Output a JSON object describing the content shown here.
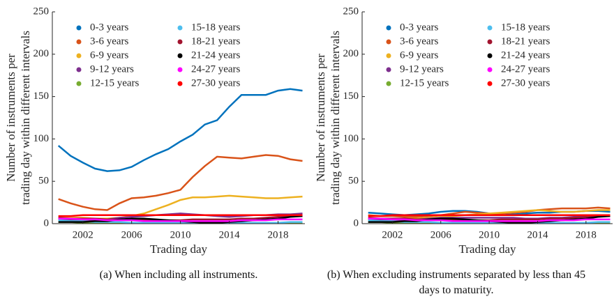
{
  "chart_data": [
    {
      "type": "line",
      "caption": "(a) When including all instruments.",
      "ylabel": [
        "Number of instruments per",
        "trading day within different intervals"
      ],
      "xlabel": "Trading day",
      "xlim": [
        1999.5,
        2020.2
      ],
      "xticks": [
        2002,
        2006,
        2010,
        2014,
        2018
      ],
      "ylim": [
        0,
        250
      ],
      "yticks": [
        0,
        50,
        100,
        150,
        200,
        250
      ],
      "legend": "upper left",
      "x": [
        2000,
        2001,
        2002,
        2003,
        2004,
        2005,
        2006,
        2007,
        2008,
        2009,
        2010,
        2011,
        2012,
        2013,
        2014,
        2015,
        2016,
        2017,
        2018,
        2019,
        2020
      ],
      "series": [
        {
          "name": "0-3 years",
          "color": "#0072bd",
          "values": [
            92,
            80,
            72,
            65,
            62,
            63,
            67,
            75,
            82,
            88,
            97,
            105,
            117,
            122,
            138,
            152,
            152,
            152,
            157,
            159,
            157
          ]
        },
        {
          "name": "3-6 years",
          "color": "#d95319",
          "values": [
            29,
            24,
            20,
            17,
            16,
            24,
            30,
            31,
            33,
            36,
            40,
            55,
            68,
            79,
            78,
            77,
            79,
            81,
            80,
            76,
            74
          ]
        },
        {
          "name": "6-9 years",
          "color": "#edb120",
          "values": [
            8,
            7,
            7,
            6,
            6,
            7,
            9,
            12,
            17,
            22,
            28,
            31,
            31,
            32,
            33,
            32,
            31,
            30,
            30,
            31,
            32
          ]
        },
        {
          "name": "9-12 years",
          "color": "#7e2f8e",
          "values": [
            5,
            4,
            4,
            4,
            5,
            7,
            8,
            9,
            10,
            11,
            12,
            11,
            10,
            9,
            8,
            9,
            10,
            10,
            11,
            11,
            12
          ]
        },
        {
          "name": "12-15 years",
          "color": "#77ac30",
          "values": [
            2,
            2,
            1,
            1,
            1,
            1,
            1,
            1,
            1,
            1,
            1,
            1,
            1,
            1,
            1,
            1,
            1,
            1,
            1,
            1,
            1
          ]
        },
        {
          "name": "15-18 years",
          "color": "#4dbeee",
          "values": [
            4,
            3,
            3,
            2,
            2,
            2,
            1,
            1,
            1,
            1,
            1,
            1,
            1,
            1,
            1,
            1,
            1,
            1,
            1,
            2,
            2
          ]
        },
        {
          "name": "18-21 years",
          "color": "#a2142f",
          "values": [
            7,
            6,
            6,
            6,
            5,
            5,
            5,
            4,
            4,
            4,
            4,
            5,
            5,
            5,
            5,
            6,
            6,
            7,
            8,
            9,
            10
          ]
        },
        {
          "name": "21-24 years",
          "color": "#000000",
          "values": [
            2,
            2,
            2,
            3,
            3,
            5,
            6,
            6,
            5,
            4,
            3,
            2,
            1,
            1,
            2,
            3,
            4,
            5,
            6,
            8,
            9
          ]
        },
        {
          "name": "24-27 years",
          "color": "#ff00ff",
          "values": [
            6,
            6,
            5,
            5,
            4,
            4,
            4,
            3,
            3,
            3,
            3,
            3,
            3,
            3,
            3,
            4,
            4,
            4,
            5,
            5,
            5
          ]
        },
        {
          "name": "27-30 years",
          "color": "#ff0000",
          "values": [
            9,
            9,
            10,
            10,
            10,
            10,
            10,
            10,
            10,
            10,
            10,
            10,
            10,
            10,
            10,
            10,
            10,
            10,
            10,
            10,
            10
          ]
        }
      ]
    },
    {
      "type": "line",
      "caption": "(b) When excluding instruments separated by less than 45 days to maturity.",
      "ylabel": [
        "Number of instruments per",
        "trading day within different intervals"
      ],
      "xlabel": "Trading day",
      "xlim": [
        1999.5,
        2020.2
      ],
      "xticks": [
        2002,
        2006,
        2010,
        2014,
        2018
      ],
      "ylim": [
        0,
        250
      ],
      "yticks": [
        0,
        50,
        100,
        150,
        200,
        250
      ],
      "legend": "upper left",
      "x": [
        2000,
        2001,
        2002,
        2003,
        2004,
        2005,
        2006,
        2007,
        2008,
        2009,
        2010,
        2011,
        2012,
        2013,
        2014,
        2015,
        2016,
        2017,
        2018,
        2019,
        2020
      ],
      "series": [
        {
          "name": "0-3 years",
          "color": "#0072bd",
          "values": [
            13,
            12,
            11,
            10,
            11,
            12,
            14,
            15,
            15,
            14,
            12,
            10,
            11,
            12,
            13,
            13,
            14,
            14,
            15,
            15,
            14
          ]
        },
        {
          "name": "3-6 years",
          "color": "#d95319",
          "values": [
            10,
            9,
            9,
            8,
            8,
            9,
            10,
            12,
            14,
            13,
            12,
            12,
            13,
            14,
            16,
            17,
            18,
            18,
            18,
            19,
            18
          ]
        },
        {
          "name": "6-9 years",
          "color": "#edb120",
          "values": [
            5,
            5,
            6,
            6,
            6,
            7,
            8,
            9,
            10,
            11,
            12,
            13,
            14,
            15,
            16,
            15,
            14,
            14,
            15,
            16,
            16
          ]
        },
        {
          "name": "9-12 years",
          "color": "#7e2f8e",
          "values": [
            5,
            4,
            4,
            4,
            5,
            6,
            7,
            7,
            7,
            7,
            7,
            7,
            7,
            6,
            6,
            7,
            7,
            8,
            9,
            9,
            9
          ]
        },
        {
          "name": "12-15 years",
          "color": "#77ac30",
          "values": [
            2,
            2,
            1,
            1,
            1,
            1,
            1,
            1,
            1,
            1,
            1,
            1,
            1,
            1,
            1,
            1,
            1,
            1,
            1,
            1,
            1
          ]
        },
        {
          "name": "15-18 years",
          "color": "#4dbeee",
          "values": [
            4,
            3,
            3,
            2,
            2,
            2,
            1,
            1,
            1,
            1,
            1,
            1,
            1,
            1,
            1,
            1,
            1,
            1,
            1,
            2,
            2
          ]
        },
        {
          "name": "18-21 years",
          "color": "#a2142f",
          "values": [
            7,
            6,
            6,
            6,
            5,
            5,
            5,
            4,
            4,
            4,
            4,
            5,
            5,
            5,
            5,
            6,
            6,
            7,
            8,
            9,
            10
          ]
        },
        {
          "name": "21-24 years",
          "color": "#000000",
          "values": [
            2,
            2,
            2,
            3,
            3,
            5,
            6,
            6,
            5,
            4,
            3,
            2,
            1,
            1,
            2,
            3,
            4,
            5,
            6,
            8,
            9
          ]
        },
        {
          "name": "24-27 years",
          "color": "#ff00ff",
          "values": [
            6,
            6,
            5,
            5,
            4,
            4,
            4,
            3,
            3,
            3,
            3,
            3,
            3,
            3,
            3,
            4,
            4,
            4,
            5,
            5,
            5
          ]
        },
        {
          "name": "27-30 years",
          "color": "#ff0000",
          "values": [
            9,
            9,
            10,
            10,
            10,
            10,
            10,
            10,
            10,
            10,
            10,
            10,
            10,
            10,
            10,
            10,
            10,
            10,
            10,
            10,
            10
          ]
        }
      ]
    }
  ]
}
